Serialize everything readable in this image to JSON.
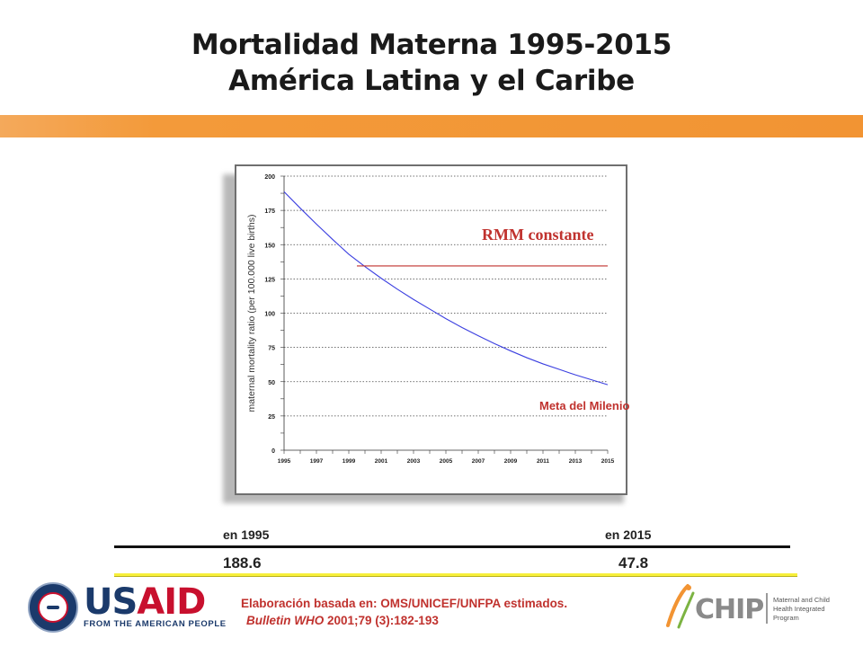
{
  "title": {
    "line1": "Mortalidad Materna 1995-2015",
    "line2": "América Latina y el Caribe"
  },
  "chart_data": {
    "type": "line",
    "ylabel": "maternal mortality ratio (per 100.000 live births)",
    "xlabel": "",
    "ylim": [
      0,
      200
    ],
    "xlim": [
      1995,
      2015
    ],
    "y_ticks": [
      0,
      25,
      50,
      75,
      100,
      125,
      150,
      175,
      200
    ],
    "x_ticks": [
      "1995",
      "1997",
      "1999",
      "2001",
      "2003",
      "2005",
      "2007",
      "2009",
      "2011",
      "2013",
      "2015"
    ],
    "grid": "horizontal-dotted",
    "series": [
      {
        "name": "Meta del Milenio",
        "color": "#3b3fe0",
        "x": [
          1995,
          1996,
          1997,
          1998,
          1999,
          2000,
          2001,
          2002,
          2003,
          2004,
          2005,
          2006,
          2007,
          2008,
          2009,
          2010,
          2011,
          2012,
          2013,
          2014,
          2015
        ],
        "y": [
          188.6,
          176.6,
          165,
          153.8,
          143,
          134,
          125.5,
          117.5,
          110,
          103,
          96,
          89.5,
          83.5,
          77.8,
          72.5,
          67.5,
          63,
          59,
          55,
          51.4,
          47.8
        ]
      },
      {
        "name": "RMM constante",
        "color": "#c0322e",
        "x": [
          1999.5,
          2015
        ],
        "y": [
          134.5,
          134.5
        ]
      }
    ],
    "annotations": {
      "rmm": "RMM constante",
      "meta": "Meta del Milenio"
    }
  },
  "summary": {
    "year_start": "en 1995",
    "year_end": "en 2015",
    "value_start": "188.6",
    "value_end": "47.8"
  },
  "source": {
    "line1": "Elaboración basada en: OMS/UNICEF/UNFPA estimados.",
    "journal": "Bulletin WHO",
    "citation": " 2001;79 (3):182-193"
  },
  "logos": {
    "usaid_us": "US",
    "usaid_aid": "AID",
    "usaid_tagline": "FROM THE AMERICAN PEOPLE",
    "chip": "CHIP",
    "chip_subtitle": "Maternal and Child Health Integrated Program"
  }
}
